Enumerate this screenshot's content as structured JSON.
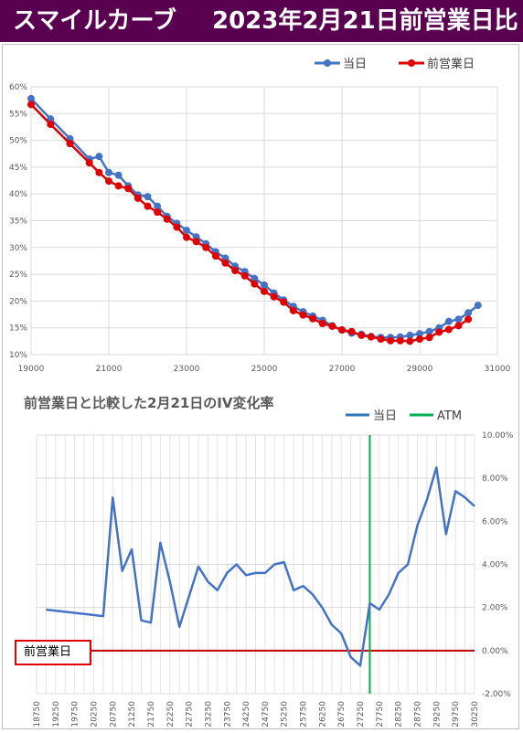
{
  "banner": {
    "title_left": "スマイルカーブ",
    "title_right": "2023年2月21日前営業日比"
  },
  "colors": {
    "banner_bg": "#5a0050",
    "today": "#4472c4",
    "previous": "#e00000",
    "atm": "#00b050",
    "zero_line": "#c00000",
    "change": "#4472c4"
  },
  "chart_data": [
    {
      "type": "line",
      "title": "",
      "xlabel": "",
      "ylabel": "",
      "xlim": [
        19000,
        31000
      ],
      "ylim": [
        10,
        60
      ],
      "xticks": [
        "19000",
        "21000",
        "23000",
        "25000",
        "27000",
        "29000",
        "31000"
      ],
      "yticks": [
        "10%",
        "15%",
        "20%",
        "25%",
        "30%",
        "35%",
        "40%",
        "45%",
        "50%",
        "55%",
        "60%"
      ],
      "legend_position": "top-right",
      "grid": true,
      "series": [
        {
          "name": "当日",
          "color": "#4472c4",
          "x": [
            19000,
            19500,
            20000,
            20500,
            20750,
            21000,
            21250,
            21500,
            21750,
            22000,
            22250,
            22500,
            22750,
            23000,
            23250,
            23500,
            23750,
            24000,
            24250,
            24500,
            24750,
            25000,
            25250,
            25500,
            25750,
            26000,
            26250,
            26500,
            26750,
            27000,
            27250,
            27500,
            27750,
            28000,
            28250,
            28500,
            28750,
            29000,
            29250,
            29500,
            29750,
            30000,
            30250,
            30500
          ],
          "y": [
            57.8,
            54.0,
            50.3,
            46.5,
            47.0,
            44.0,
            43.5,
            41.5,
            39.8,
            39.5,
            37.7,
            35.8,
            34.5,
            33.2,
            32.0,
            30.7,
            29.2,
            28.0,
            26.5,
            25.5,
            24.2,
            23.0,
            21.5,
            20.2,
            19.0,
            18.0,
            17.2,
            16.4,
            15.4,
            14.6,
            14.0,
            13.8,
            13.4,
            13.2,
            13.2,
            13.3,
            13.6,
            13.9,
            14.3,
            15.0,
            16.2,
            16.6,
            17.8,
            19.2
          ]
        },
        {
          "name": "前営業日",
          "color": "#e00000",
          "x": [
            19000,
            19500,
            20000,
            20500,
            20750,
            21000,
            21250,
            21500,
            21750,
            22000,
            22250,
            22500,
            22750,
            23000,
            23250,
            23500,
            23750,
            24000,
            24250,
            24500,
            24750,
            25000,
            25250,
            25500,
            25750,
            26000,
            26250,
            26500,
            26750,
            27000,
            27250,
            27500,
            27750,
            28000,
            28250,
            28500,
            28750,
            29000,
            29250,
            29500,
            29750,
            30000,
            30250
          ],
          "y": [
            56.7,
            53.0,
            49.4,
            45.8,
            44.0,
            42.4,
            41.5,
            41.0,
            39.2,
            37.7,
            36.6,
            35.3,
            33.8,
            31.9,
            31.1,
            30.0,
            28.4,
            27.1,
            25.7,
            24.7,
            23.2,
            21.8,
            20.8,
            19.8,
            18.2,
            17.4,
            16.7,
            15.8,
            15.3,
            14.6,
            14.3,
            13.6,
            13.3,
            12.9,
            12.6,
            12.6,
            12.5,
            12.9,
            13.2,
            14.2,
            14.7,
            15.4,
            16.6
          ]
        }
      ]
    },
    {
      "type": "line",
      "title": "前営業日と比較した2月21日のIV変化率",
      "xlabel": "",
      "ylabel": "",
      "ylim": [
        -2,
        10
      ],
      "yticks": [
        "-2.00%",
        "0.00%",
        "2.00%",
        "4.00%",
        "6.00%",
        "8.00%",
        "10.00%"
      ],
      "categories": [
        "18750",
        "19000",
        "19250",
        "19500",
        "19750",
        "20000",
        "20250",
        "20500",
        "20750",
        "21000",
        "21250",
        "21500",
        "21750",
        "22000",
        "22250",
        "22500",
        "22750",
        "23000",
        "23250",
        "23500",
        "23750",
        "24000",
        "24250",
        "24500",
        "24750",
        "25000",
        "25250",
        "25500",
        "25750",
        "26000",
        "26250",
        "26500",
        "26750",
        "27000",
        "27250",
        "27500",
        "27750",
        "28000",
        "28250",
        "28500",
        "28750",
        "29000",
        "29250",
        "29500",
        "29750",
        "30000",
        "30250"
      ],
      "xtick_labels": [
        "18750",
        "19250",
        "19750",
        "20250",
        "20750",
        "21250",
        "21750",
        "22250",
        "22750",
        "23250",
        "23750",
        "24250",
        "24750",
        "25250",
        "25750",
        "26250",
        "26750",
        "27250",
        "27750",
        "28250",
        "28750",
        "29250",
        "29750",
        "30250"
      ],
      "legend_position": "top-right",
      "atm_category": "27500",
      "zero_line_label": "前営業日",
      "series": [
        {
          "name": "当日",
          "color": "#4472c4",
          "x": [
            "19000",
            "20500",
            "20750",
            "21000",
            "21250",
            "21500",
            "21750",
            "22000",
            "22250",
            "22500",
            "22750",
            "23000",
            "23250",
            "23500",
            "23750",
            "24000",
            "24250",
            "24500",
            "24750",
            "25000",
            "25250",
            "25500",
            "25750",
            "26000",
            "26250",
            "26500",
            "26750",
            "27000",
            "27250",
            "27500",
            "27750",
            "28000",
            "28250",
            "28500",
            "28750",
            "29000",
            "29250",
            "29500",
            "29750",
            "30000",
            "30250"
          ],
          "y": [
            1.9,
            1.6,
            7.1,
            3.7,
            4.7,
            1.4,
            1.3,
            5.0,
            3.2,
            1.1,
            2.5,
            3.9,
            3.2,
            2.8,
            3.6,
            4.0,
            3.5,
            3.6,
            3.6,
            4.0,
            4.1,
            2.8,
            3.0,
            2.6,
            2.0,
            1.2,
            0.8,
            -0.3,
            -0.7,
            2.2,
            1.9,
            2.6,
            3.6,
            4.0,
            5.8,
            7.0,
            8.5,
            5.4,
            7.4,
            7.1,
            6.7
          ]
        },
        {
          "name": "ATM",
          "color": "#00b050"
        }
      ]
    }
  ]
}
